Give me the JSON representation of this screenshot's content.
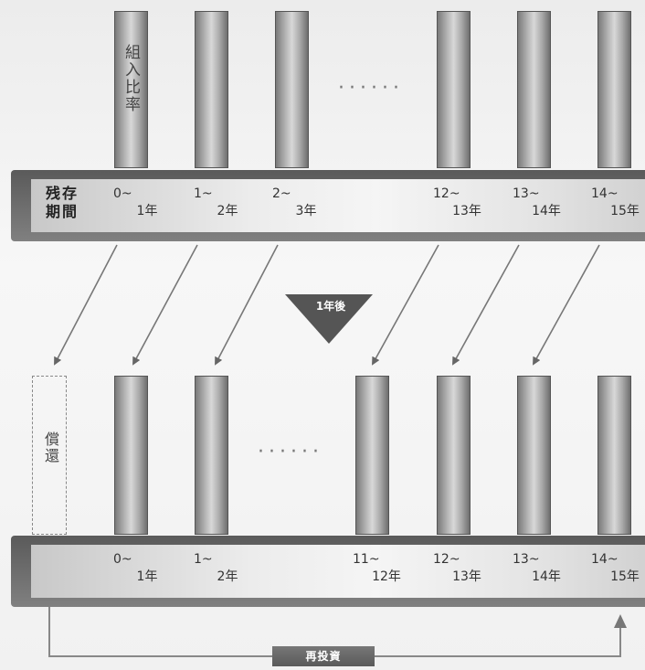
{
  "top": {
    "bar_label": "組入比率",
    "axis_label_line1": "残存",
    "axis_label_line2": "期間",
    "ellipsis": "······",
    "ticks": [
      {
        "l1": "0~",
        "l2": "1年"
      },
      {
        "l1": "1~",
        "l2": "2年"
      },
      {
        "l1": "2~",
        "l2": "3年"
      },
      {
        "l1": "12~",
        "l2": "13年"
      },
      {
        "l1": "13~",
        "l2": "14年"
      },
      {
        "l1": "14~",
        "l2": "15年"
      }
    ]
  },
  "transition_label": "1年後",
  "bottom": {
    "redeem_label": "償還",
    "ellipsis": "······",
    "ticks": [
      {
        "l1": "0~",
        "l2": "1年"
      },
      {
        "l1": "1~",
        "l2": "2年"
      },
      {
        "l1": "11~",
        "l2": "12年"
      },
      {
        "l1": "12~",
        "l2": "13年"
      },
      {
        "l1": "13~",
        "l2": "14年"
      },
      {
        "l1": "14~",
        "l2": "15年"
      }
    ]
  },
  "reinvest_label": "再投資",
  "colors": {
    "bar_dark": "#6e6e6e",
    "bar_light": "#d8d8d8",
    "band_dark": "#5a5a5a",
    "arrow": "#666666",
    "triangle": "#555555"
  }
}
